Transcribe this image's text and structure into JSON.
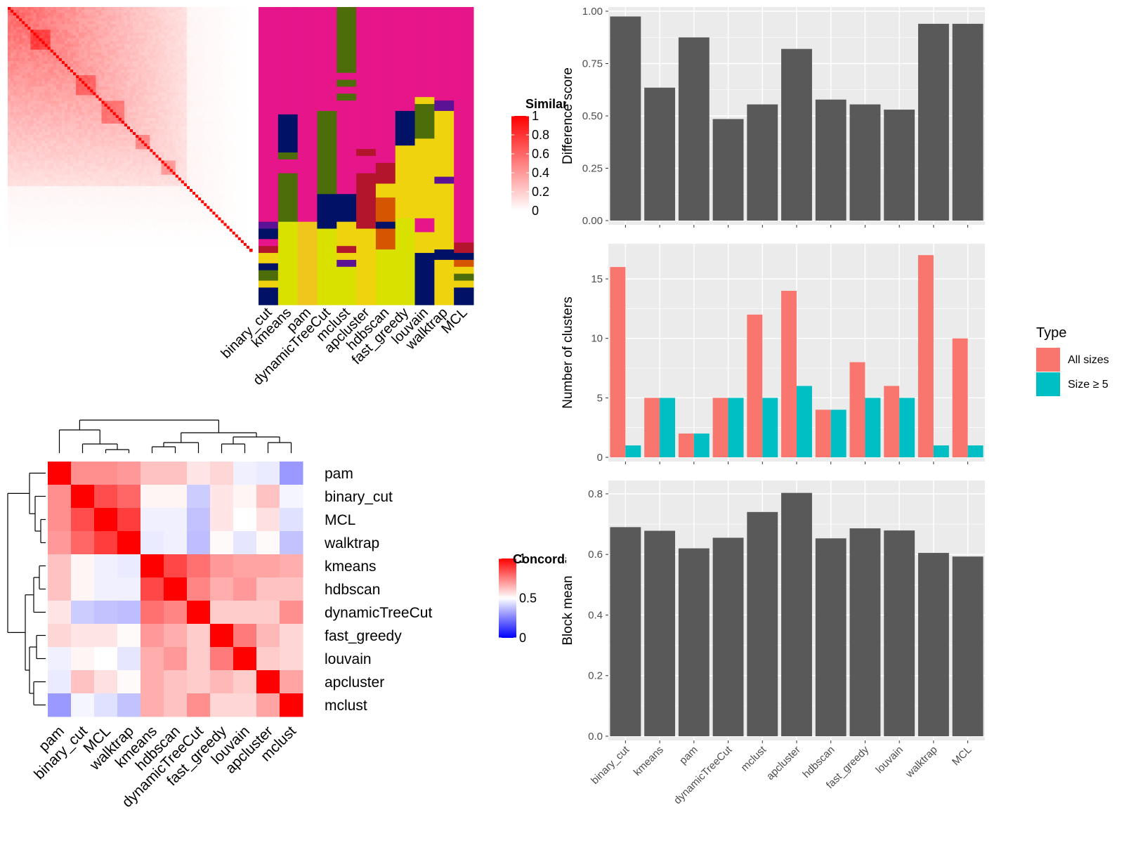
{
  "colors": {
    "panel_bg": "#ebebeb",
    "grid": "#ffffff",
    "bar_dark": "#595959",
    "all_sizes": "#f8766d",
    "size5": "#00bfc4",
    "sim_high": "#ff0000",
    "sim_low": "#ffffff",
    "conc_high": "#ff0000",
    "conc_mid": "#ffffff",
    "conc_low": "#0000ff",
    "class_colors": [
      "#e7158a",
      "#4d6d0b",
      "#001166",
      "#eed30e",
      "#b3152d",
      "#d65500",
      "#5c1294",
      "#1d7a7f",
      "#d9e100",
      "#f0c51c"
    ]
  },
  "similarity_legend": {
    "title": "Similarity",
    "ticks": [
      "1",
      "0.8",
      "0.6",
      "0.4",
      "0.2",
      "0"
    ]
  },
  "concordance_legend": {
    "title": "Concordance",
    "ticks": [
      "1",
      "0.5",
      "0"
    ]
  },
  "classification_methods": [
    "binary_cut",
    "kmeans",
    "pam",
    "dynamicTreeCut",
    "mclust",
    "apcluster",
    "hdbscan",
    "fast_greedy",
    "louvain",
    "walktrap",
    "MCL"
  ],
  "concordance_order": [
    "pam",
    "binary_cut",
    "MCL",
    "walktrap",
    "kmeans",
    "hdbscan",
    "dynamicTreeCut",
    "fast_greedy",
    "louvain",
    "apcluster",
    "mclust"
  ],
  "concordance_matrix": [
    [
      1.0,
      0.72,
      0.72,
      0.7,
      0.62,
      0.62,
      0.55,
      0.58,
      0.47,
      0.46,
      0.3
    ],
    [
      0.72,
      1.0,
      0.85,
      0.8,
      0.52,
      0.52,
      0.4,
      0.55,
      0.52,
      0.62,
      0.48
    ],
    [
      0.72,
      0.85,
      1.0,
      0.88,
      0.47,
      0.47,
      0.38,
      0.55,
      0.5,
      0.56,
      0.44
    ],
    [
      0.7,
      0.8,
      0.88,
      1.0,
      0.46,
      0.47,
      0.37,
      0.51,
      0.45,
      0.51,
      0.38
    ],
    [
      0.62,
      0.52,
      0.47,
      0.46,
      1.0,
      0.86,
      0.78,
      0.7,
      0.68,
      0.68,
      0.66
    ],
    [
      0.62,
      0.52,
      0.47,
      0.47,
      0.86,
      1.0,
      0.74,
      0.66,
      0.7,
      0.62,
      0.62
    ],
    [
      0.55,
      0.4,
      0.38,
      0.37,
      0.78,
      0.74,
      1.0,
      0.6,
      0.6,
      0.6,
      0.72
    ],
    [
      0.58,
      0.55,
      0.55,
      0.51,
      0.7,
      0.66,
      0.6,
      1.0,
      0.76,
      0.64,
      0.58
    ],
    [
      0.47,
      0.52,
      0.5,
      0.45,
      0.66,
      0.7,
      0.6,
      0.76,
      1.0,
      0.6,
      0.58
    ],
    [
      0.46,
      0.62,
      0.56,
      0.51,
      0.66,
      0.62,
      0.6,
      0.64,
      0.6,
      1.0,
      0.68
    ],
    [
      0.3,
      0.48,
      0.44,
      0.38,
      0.66,
      0.62,
      0.72,
      0.58,
      0.58,
      0.68,
      1.0
    ]
  ],
  "legend": {
    "title": "Type",
    "items": [
      "All sizes",
      "Size ≥ 5"
    ]
  },
  "chart_data": [
    {
      "type": "bar",
      "categories": [
        "binary_cut",
        "kmeans",
        "pam",
        "dynamicTreeCut",
        "mclust",
        "apcluster",
        "hdbscan",
        "fast_greedy",
        "louvain",
        "walktrap",
        "MCL"
      ],
      "values": [
        0.975,
        0.635,
        0.875,
        0.485,
        0.555,
        0.82,
        0.578,
        0.555,
        0.53,
        0.94,
        0.94
      ],
      "ylabel": "Difference score",
      "ylim": [
        0,
        1.0
      ],
      "yticks": [
        "0.00",
        "0.25",
        "0.50",
        "0.75",
        "1.00"
      ],
      "show_xlabels": false
    },
    {
      "type": "bar",
      "categories": [
        "binary_cut",
        "kmeans",
        "pam",
        "dynamicTreeCut",
        "mclust",
        "apcluster",
        "hdbscan",
        "fast_greedy",
        "louvain",
        "walktrap",
        "MCL"
      ],
      "series": [
        {
          "name": "All sizes",
          "values": [
            16,
            5,
            2,
            5,
            12,
            14,
            4,
            8,
            6,
            17,
            10
          ]
        },
        {
          "name": "Size ≥ 5",
          "values": [
            1,
            5,
            2,
            5,
            5,
            6,
            4,
            5,
            5,
            1,
            1
          ]
        }
      ],
      "ylabel": "Number of clusters",
      "ylim": [
        0,
        17.6
      ],
      "yticks": [
        "0",
        "5",
        "10",
        "15"
      ],
      "legend": "right",
      "show_xlabels": false
    },
    {
      "type": "bar",
      "categories": [
        "binary_cut",
        "kmeans",
        "pam",
        "dynamicTreeCut",
        "mclust",
        "apcluster",
        "hdbscan",
        "fast_greedy",
        "louvain",
        "walktrap",
        "MCL"
      ],
      "values": [
        0.69,
        0.678,
        0.62,
        0.655,
        0.74,
        0.803,
        0.653,
        0.686,
        0.679,
        0.605,
        0.593
      ],
      "ylabel": "Block mean",
      "ylim": [
        0,
        0.83
      ],
      "yticks": [
        "0.0",
        "0.2",
        "0.4",
        "0.6",
        "0.8"
      ],
      "show_xlabels": true
    }
  ]
}
